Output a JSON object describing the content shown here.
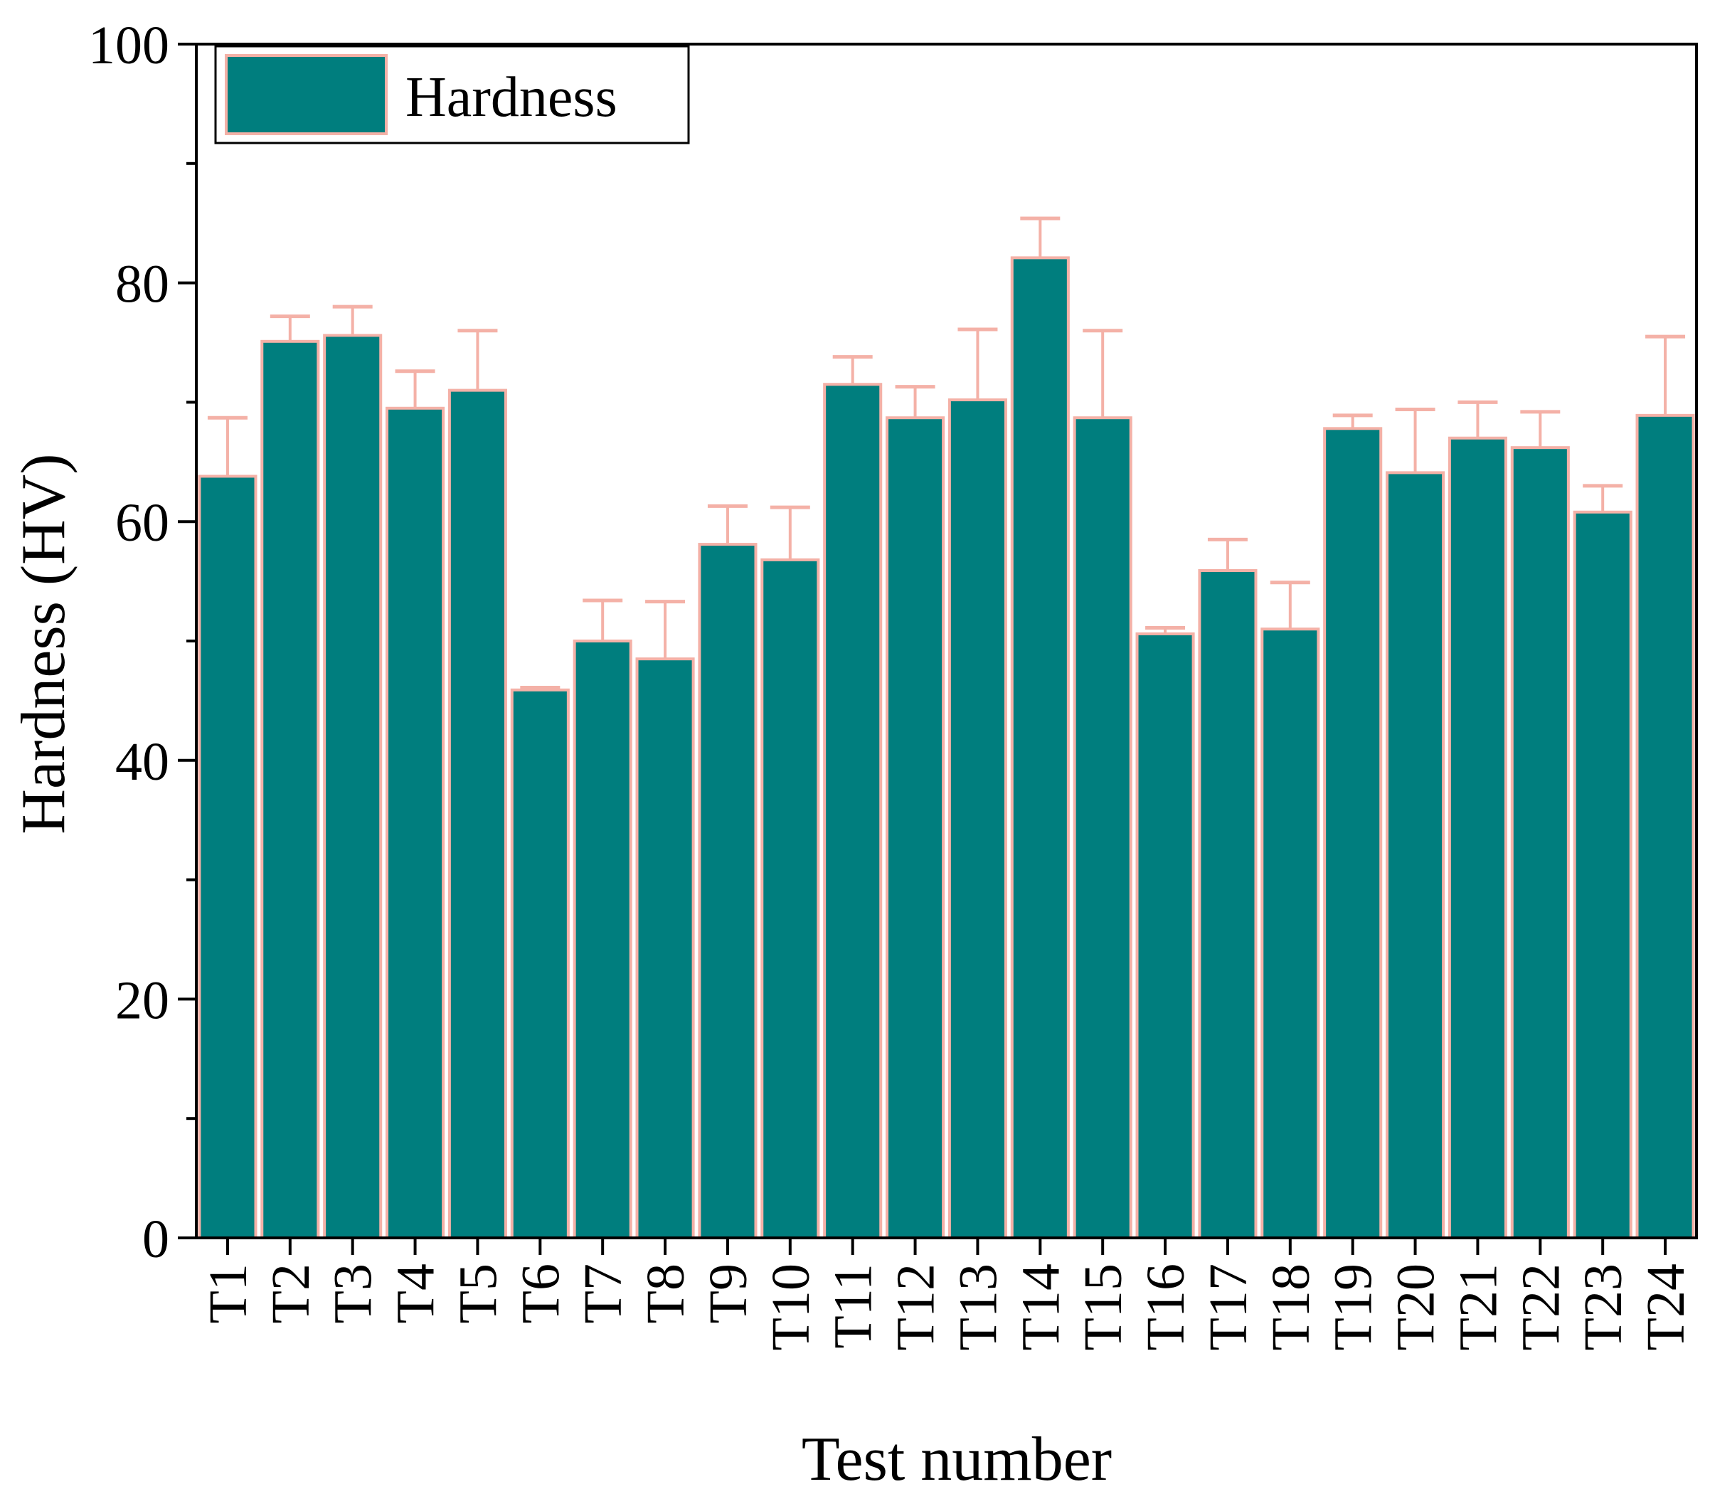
{
  "chart_data": {
    "type": "bar",
    "xlabel": "Test number",
    "ylabel": "Hardness (HV)",
    "ylim": [
      0,
      100
    ],
    "yticks": [
      0,
      20,
      40,
      60,
      80,
      100
    ],
    "categories": [
      "T1",
      "T2",
      "T3",
      "T4",
      "T5",
      "T6",
      "T7",
      "T8",
      "T9",
      "T10",
      "T11",
      "T12",
      "T13",
      "T14",
      "T15",
      "T16",
      "T17",
      "T18",
      "T19",
      "T20",
      "T21",
      "T22",
      "T23",
      "T24"
    ],
    "series": [
      {
        "name": "Hardness",
        "values": [
          63.8,
          75.1,
          75.6,
          69.5,
          71.0,
          45.9,
          50.0,
          48.5,
          58.1,
          56.8,
          71.5,
          68.7,
          70.2,
          82.1,
          68.7,
          50.6,
          55.9,
          51.0,
          67.8,
          64.1,
          67.0,
          66.2,
          60.8,
          68.9
        ],
        "error": [
          4.9,
          2.1,
          2.4,
          3.1,
          5.0,
          0.2,
          3.4,
          4.8,
          3.2,
          4.4,
          2.3,
          2.6,
          5.9,
          3.3,
          7.3,
          0.5,
          2.6,
          3.9,
          1.1,
          5.3,
          3.0,
          3.0,
          2.2,
          6.6
        ]
      }
    ],
    "legend": {
      "placement": "top-left",
      "entries": [
        "Hardness"
      ]
    },
    "colors": {
      "bar_fill": "#007e7e",
      "bar_edge": "#f4b1a7",
      "error_bar": "#f4b1a7",
      "axis": "#000000"
    },
    "grid": false
  }
}
